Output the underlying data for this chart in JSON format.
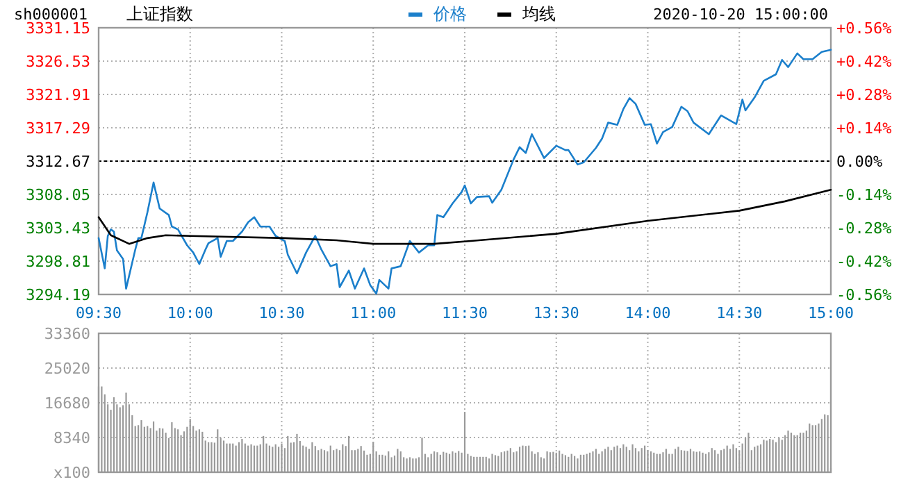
{
  "chart_data": [
    {
      "type": "line",
      "title": "上证指数",
      "subtitle": "sh000001",
      "annotations": [
        "2020-10-20 15:00:00"
      ],
      "categories": [
        "09:30",
        null,
        null,
        null,
        null,
        null,
        null,
        null,
        null,
        null,
        null,
        null,
        null,
        null,
        null,
        null,
        null,
        null,
        null,
        null,
        null,
        null,
        null,
        null,
        null,
        null,
        null,
        null,
        null,
        null,
        "10:00",
        null,
        null,
        null,
        null,
        null,
        null,
        null,
        null,
        null,
        null,
        null,
        null,
        null,
        null,
        null,
        null,
        null,
        null,
        null,
        null,
        null,
        null,
        null,
        null,
        null,
        null,
        null,
        null,
        null,
        "10:30",
        null,
        null,
        null,
        null,
        null,
        null,
        null,
        null,
        null,
        null,
        null,
        null,
        null,
        null,
        null,
        null,
        null,
        null,
        null,
        null,
        null,
        null,
        null,
        null,
        null,
        null,
        null,
        null,
        null,
        "11:00",
        null,
        null,
        null,
        null,
        null,
        null,
        null,
        null,
        null,
        null,
        null,
        null,
        null,
        null,
        null,
        null,
        null,
        null,
        null,
        null,
        null,
        null,
        null,
        null,
        null,
        null,
        null,
        null,
        null,
        "11:30",
        null,
        null,
        null,
        null,
        null,
        null,
        null,
        null,
        null,
        null,
        null,
        null,
        null,
        null,
        null,
        null,
        null,
        null,
        null,
        null,
        null,
        null,
        null,
        null,
        null,
        null,
        null,
        null,
        null,
        "13:30",
        null,
        null,
        null,
        null,
        null,
        null,
        null,
        null,
        null,
        null,
        null,
        null,
        null,
        null,
        null,
        null,
        null,
        null,
        null,
        null,
        null,
        null,
        null,
        null,
        null,
        null,
        null,
        null,
        null,
        "14:00",
        null,
        null,
        null,
        null,
        null,
        null,
        null,
        null,
        null,
        null,
        null,
        null,
        null,
        null,
        null,
        null,
        null,
        null,
        null,
        null,
        null,
        null,
        null,
        null,
        null,
        null,
        null,
        null,
        null,
        "14:30",
        null,
        null,
        null,
        null,
        null,
        null,
        null,
        null,
        null,
        null,
        null,
        null,
        null,
        null,
        null,
        null,
        null,
        null,
        null,
        null,
        null,
        null,
        null,
        null,
        null,
        null,
        null,
        null,
        null,
        "15:00"
      ],
      "ylim": [
        3294.19,
        3331.15
      ],
      "yticks": [
        3294.19,
        3298.81,
        3303.43,
        3308.05,
        3312.67,
        3317.29,
        3321.91,
        3326.53,
        3331.15
      ],
      "y2lim": [
        -0.56,
        0.56
      ],
      "y2ticks": [
        {
          "value": -0.56,
          "label": "-0.56%"
        },
        {
          "value": -0.42,
          "label": "-0.42%"
        },
        {
          "value": -0.28,
          "label": "-0.28%"
        },
        {
          "value": -0.14,
          "label": "-0.14%"
        },
        {
          "value": 0,
          "label": "0.00%"
        },
        {
          "value": 0.14,
          "label": "+0.14%"
        },
        {
          "value": 0.28,
          "label": "+0.28%"
        },
        {
          "value": 0.42,
          "label": "+0.42%"
        },
        {
          "value": 0.56,
          "label": "+0.56%"
        }
      ],
      "ref_lines": [
        {
          "axis": "y",
          "value": 3312.67,
          "color": "#000000",
          "line_style": "dashed"
        }
      ],
      "grid": true,
      "legend": "top",
      "series": [
        {
          "name": "价格",
          "color": "#1b7fcb",
          "values": [
            3302.0,
            null,
            3297.8,
            3302.3,
            3303.2,
            3302.9,
            3300.3,
            null,
            3299.1,
            3295.0,
            null,
            null,
            3300.4,
            3302.0,
            3302.0,
            null,
            3305.6,
            null,
            3309.7,
            null,
            3306.1,
            null,
            null,
            3305.2,
            3303.6,
            null,
            3303.2,
            null,
            null,
            3301.0,
            null,
            3300.0,
            null,
            3298.4,
            null,
            3300.4,
            3301.3,
            null,
            null,
            3302.0,
            3299.4,
            null,
            3301.6,
            null,
            3301.6,
            null,
            null,
            3302.9,
            null,
            3304.2,
            null,
            3304.9,
            null,
            3303.6,
            null,
            null,
            3303.6,
            null,
            3302.3,
            null,
            null,
            3301.6,
            3299.7,
            null,
            null,
            3297.1,
            null,
            null,
            3300.0,
            null,
            null,
            3302.3,
            null,
            3300.4,
            null,
            null,
            3298.1,
            null,
            3298.4,
            3295.2,
            null,
            null,
            3297.5,
            null,
            3295.0,
            null,
            null,
            3297.8,
            null,
            3295.5,
            null,
            3294.3,
            3296.2,
            null,
            null,
            3295.0,
            3297.8,
            null,
            null,
            3298.1,
            null,
            null,
            3301.6,
            null,
            null,
            3300.0,
            null,
            null,
            3301.0,
            null,
            3301.0,
            3305.2,
            null,
            3304.9,
            null,
            null,
            3306.8,
            null,
            null,
            3308.4,
            3309.3,
            null,
            3306.8,
            null,
            3307.7,
            null,
            null,
            null,
            3307.8,
            3306.9,
            null,
            null,
            3308.7,
            null,
            null,
            null,
            3312.9,
            null,
            3314.6,
            null,
            3313.8,
            null,
            3316.4,
            null,
            null,
            null,
            3313.1,
            null,
            null,
            null,
            3314.8,
            null,
            null,
            3314.2,
            3314.2,
            null,
            null,
            3312.2,
            null,
            3312.5,
            null,
            null,
            null,
            3314.5,
            null,
            3315.8,
            null,
            3318.0,
            null,
            null,
            3317.7,
            null,
            3319.9,
            null,
            3321.4,
            null,
            3320.6,
            null,
            null,
            3317.7,
            null,
            3317.8,
            null,
            3315.1,
            null,
            3316.7,
            null,
            null,
            3317.4,
            null,
            null,
            3320.2,
            null,
            3319.6,
            null,
            3318.0,
            null,
            null,
            null,
            null,
            3316.4,
            null,
            null,
            null,
            3319.0,
            null,
            null,
            null,
            null,
            3317.8,
            null,
            3321.2,
            3319.7,
            null,
            null,
            3321.5,
            null,
            null,
            3323.8,
            null,
            null,
            null,
            3324.7,
            null,
            3326.7,
            null,
            3325.7,
            null,
            null,
            3327.6,
            null,
            3326.8,
            null,
            null,
            3326.8,
            null,
            null,
            3327.8,
            null,
            null,
            3328.1
          ]
        },
        {
          "name": "均线",
          "color": "#000000",
          "values": [
            3304.9,
            null,
            null,
            null,
            3302.4,
            null,
            null,
            null,
            null,
            null,
            3301.2,
            null,
            null,
            null,
            null,
            null,
            3302.0,
            null,
            null,
            null,
            null,
            null,
            3302.4,
            null,
            null,
            null,
            null,
            null,
            null,
            null,
            3302.3,
            null,
            null,
            null,
            null,
            null,
            null,
            null,
            null,
            null,
            null,
            null,
            null,
            null,
            null,
            null,
            null,
            null,
            null,
            null,
            null,
            null,
            null,
            null,
            null,
            null,
            null,
            null,
            null,
            null,
            null,
            3302.0,
            null,
            null,
            null,
            null,
            null,
            null,
            null,
            null,
            null,
            null,
            null,
            null,
            null,
            null,
            null,
            null,
            3301.7,
            null,
            null,
            null,
            null,
            null,
            null,
            null,
            null,
            null,
            null,
            null,
            3301.2,
            null,
            null,
            null,
            null,
            null,
            null,
            null,
            null,
            null,
            null,
            null,
            null,
            null,
            null,
            null,
            null,
            null,
            null,
            null,
            3301.2,
            null,
            null,
            null,
            null,
            null,
            null,
            null,
            null,
            null,
            null,
            null,
            3301.6,
            null,
            null,
            null,
            null,
            null,
            null,
            null,
            null,
            null,
            null,
            null,
            null,
            null,
            null,
            null,
            null,
            null,
            null,
            null,
            null,
            null,
            null,
            null,
            null,
            null,
            null,
            null,
            3302.6,
            null,
            null,
            null,
            null,
            null,
            null,
            null,
            null,
            null,
            null,
            null,
            null,
            null,
            null,
            null,
            null,
            null,
            null,
            null,
            null,
            null,
            null,
            null,
            null,
            null,
            null,
            null,
            null,
            null,
            3304.4,
            null,
            null,
            null,
            null,
            null,
            null,
            null,
            null,
            null,
            null,
            null,
            null,
            null,
            null,
            null,
            null,
            null,
            null,
            null,
            null,
            null,
            null,
            null,
            null,
            null,
            null,
            null,
            null,
            null,
            3305.8,
            null,
            null,
            null,
            null,
            null,
            null,
            null,
            null,
            null,
            null,
            null,
            null,
            null,
            null,
            3307.1,
            null,
            null,
            null,
            null,
            null,
            null,
            null,
            null,
            null,
            null,
            null,
            null,
            null,
            null,
            3308.7
          ]
        }
      ]
    },
    {
      "type": "bar",
      "color": "#999999",
      "grid": true,
      "categories": [
        null,
        null,
        null,
        null,
        null,
        null,
        null,
        null,
        null,
        null,
        null,
        null,
        null,
        null,
        null,
        null,
        null,
        null,
        null,
        null,
        null,
        null,
        null,
        null,
        null,
        null,
        null,
        null,
        null,
        null,
        null,
        null,
        null,
        null,
        null,
        null,
        null,
        null,
        null,
        null,
        null,
        null,
        null,
        null,
        null,
        null,
        null,
        null,
        null,
        null,
        null,
        null,
        null,
        null,
        null,
        null,
        null,
        null,
        null,
        null,
        null,
        null,
        null,
        null,
        null,
        null,
        null,
        null,
        null,
        null,
        null,
        null,
        null,
        null,
        null,
        null,
        null,
        null,
        null,
        null,
        null,
        null,
        null,
        null,
        null,
        null,
        null,
        null,
        null,
        null,
        null,
        null,
        null,
        null,
        null,
        null,
        null,
        null,
        null,
        null,
        null,
        null,
        null,
        null,
        null,
        null,
        null,
        null,
        null,
        null,
        null,
        null,
        null,
        null,
        null,
        null,
        null,
        null,
        null,
        null,
        null,
        null,
        null,
        null,
        null,
        null,
        null,
        null,
        null,
        null,
        null,
        null,
        null,
        null,
        null,
        null,
        null,
        null,
        null,
        null,
        null,
        null,
        null,
        null,
        null,
        null,
        null,
        null,
        null,
        null,
        null,
        null,
        null,
        null,
        null,
        null,
        null,
        null,
        null,
        null,
        null,
        null,
        null,
        null,
        null,
        null,
        null,
        null,
        null,
        null,
        null,
        null,
        null,
        null,
        null,
        null,
        null,
        null,
        null,
        null,
        null,
        null,
        null,
        null,
        null,
        null,
        null,
        null,
        null,
        null,
        null,
        null,
        null,
        null,
        null,
        null,
        null,
        null,
        null,
        null,
        null,
        null,
        null,
        null,
        null,
        null,
        null,
        null,
        null,
        null,
        null,
        null,
        null,
        null,
        null,
        null,
        null,
        null,
        null,
        null,
        null,
        null,
        null,
        null,
        null,
        null,
        null,
        null,
        null,
        null,
        null,
        null,
        null,
        null,
        null,
        null,
        null,
        null,
        null,
        null,
        null
      ],
      "ylim": [
        0,
        33360
      ],
      "yticks": [
        {
          "value": 0,
          "label": "x100"
        },
        8340,
        16680,
        25020,
        33360
      ],
      "values": [
        20600,
        20600,
        18700,
        16300,
        15000,
        18000,
        16300,
        15600,
        16100,
        19100,
        16300,
        13700,
        11100,
        11300,
        12500,
        10900,
        11100,
        10600,
        12200,
        10000,
        10600,
        10500,
        9500,
        8200,
        12000,
        10600,
        10300,
        8900,
        9800,
        10900,
        12800,
        11100,
        10000,
        10300,
        9700,
        7600,
        7200,
        7200,
        7100,
        10300,
        8300,
        7600,
        6900,
        6900,
        6900,
        6400,
        7200,
        8000,
        6900,
        6400,
        6700,
        6400,
        6400,
        6700,
        8700,
        6900,
        6400,
        6100,
        6700,
        6100,
        6900,
        5800,
        8700,
        7100,
        7200,
        9200,
        7500,
        6400,
        6100,
        5600,
        7200,
        6300,
        5300,
        5600,
        5300,
        5000,
        6400,
        5300,
        5600,
        5300,
        6700,
        6300,
        8700,
        5300,
        5300,
        5600,
        6300,
        5200,
        4200,
        4400,
        7200,
        5000,
        4200,
        4200,
        4000,
        5000,
        3600,
        4000,
        5600,
        5000,
        3600,
        3300,
        3600,
        3300,
        3300,
        3600,
        8300,
        4400,
        3600,
        4400,
        5000,
        4800,
        4200,
        4900,
        4700,
        4400,
        5000,
        4700,
        5100,
        4700,
        14500,
        4400,
        3900,
        3700,
        3700,
        3700,
        3700,
        3700,
        3300,
        4400,
        4100,
        3900,
        4800,
        5000,
        5200,
        5800,
        4800,
        5000,
        6100,
        6400,
        6300,
        6400,
        5000,
        4400,
        4800,
        3600,
        3300,
        5000,
        4800,
        4900,
        4700,
        5200,
        4400,
        4100,
        3700,
        4400,
        3900,
        3300,
        4200,
        4200,
        4400,
        4700,
        5000,
        5600,
        4400,
        5000,
        5600,
        6100,
        5300,
        6100,
        6400,
        5800,
        6700,
        6100,
        5300,
        6700,
        5800,
        5000,
        5800,
        6400,
        5300,
        5000,
        4700,
        4400,
        4400,
        4800,
        5600,
        4400,
        4400,
        5600,
        6100,
        5300,
        5200,
        5100,
        5600,
        5000,
        4900,
        5000,
        4700,
        4400,
        4800,
        5800,
        5300,
        4400,
        5300,
        5600,
        6400,
        5600,
        6700,
        5800,
        5200,
        6900,
        8300,
        9500,
        5300,
        6100,
        6400,
        6700,
        7800,
        7600,
        8000,
        7800,
        7200,
        8300,
        7800,
        8900,
        10000,
        9500,
        8900,
        8900,
        9500,
        9500,
        10000,
        11700,
        11300,
        11300,
        11700,
        12800,
        13900,
        13700,
        900
      ]
    }
  ]
}
